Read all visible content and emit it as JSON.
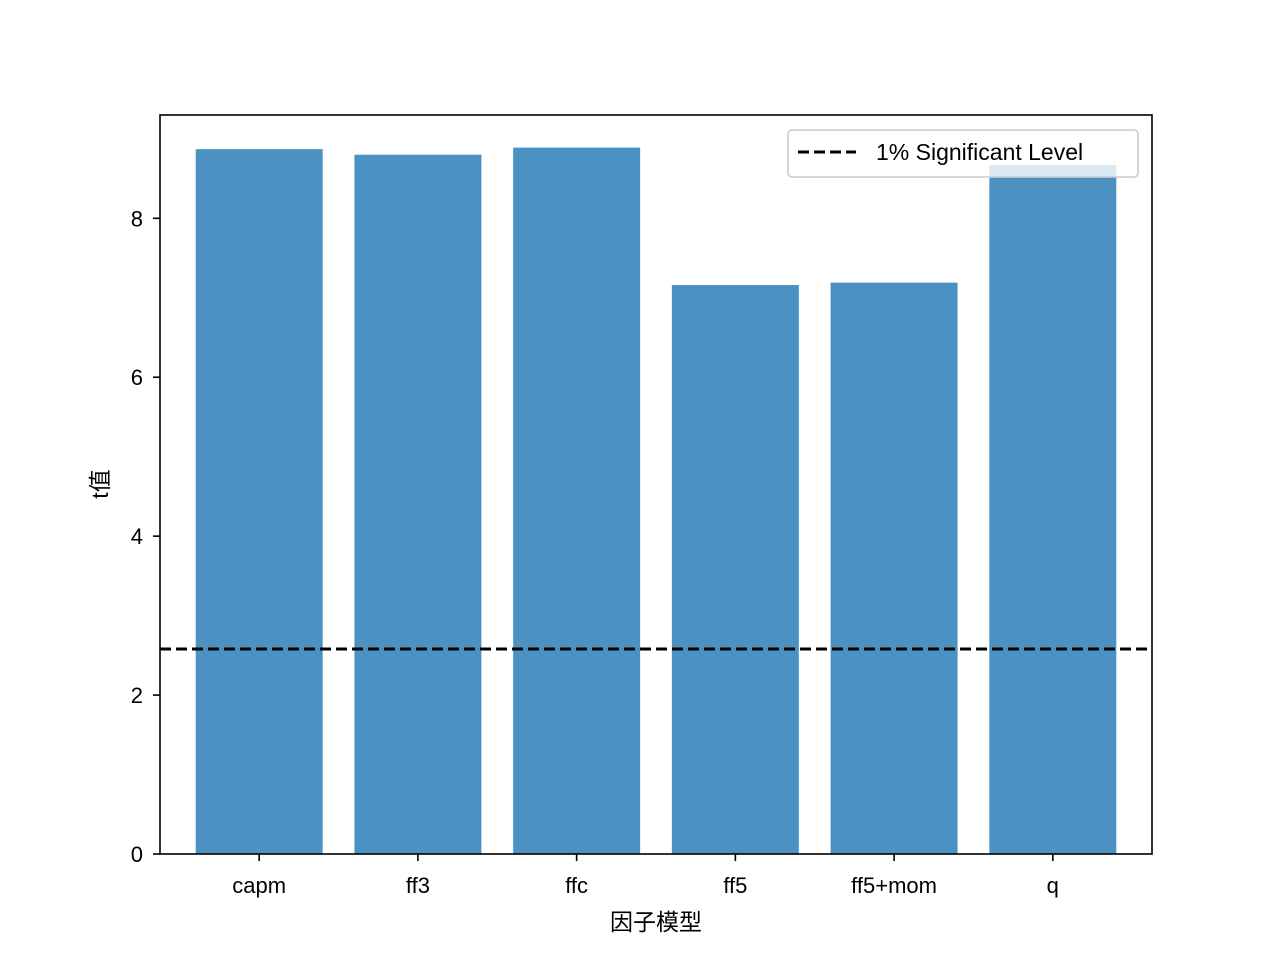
{
  "chart_data": {
    "type": "bar",
    "title": "",
    "xlabel": "因子模型",
    "ylabel": "t值",
    "categories": [
      "capm",
      "ff3",
      "ffc",
      "ff5",
      "ff5+mom",
      "q"
    ],
    "values": [
      8.87,
      8.8,
      8.89,
      7.16,
      7.19,
      8.67
    ],
    "ylim": [
      0,
      9.3
    ],
    "yticks": [
      0,
      2,
      4,
      6,
      8
    ],
    "bar_color": "#4b92c3",
    "grid": false,
    "reference_line": {
      "label": "1% Significant Level",
      "value": 2.58,
      "style": "dashed",
      "color": "#000000"
    },
    "legend": {
      "placement": "top-right",
      "entries": [
        "1% Significant Level"
      ]
    }
  }
}
